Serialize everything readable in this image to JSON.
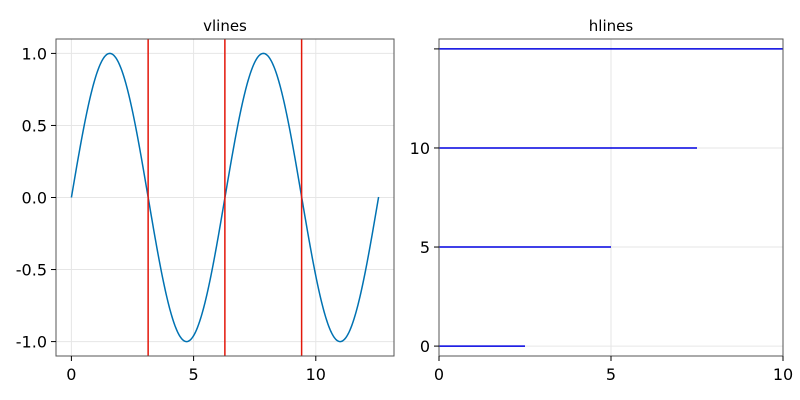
{
  "colors": {
    "sine": "#0072B2",
    "vlines": "#E3170A",
    "hlines": "#0000E0",
    "grid": "#E6E6E6",
    "frame": "#555555"
  },
  "chart_data": [
    {
      "type": "line",
      "title": "vlines",
      "xlabel": "",
      "ylabel": "",
      "xlim": [
        -0.63,
        13.2
      ],
      "ylim": [
        -1.1,
        1.1
      ],
      "grid": true,
      "x_ticks": [
        0,
        5,
        10
      ],
      "x_tick_labels": [
        "0",
        "5",
        "10"
      ],
      "y_ticks": [
        1.0,
        0.5,
        0.0,
        -0.5,
        -1.0
      ],
      "y_tick_labels": [
        "1.0",
        "0.5",
        "0.0",
        "-0.5",
        "-1.0"
      ],
      "series": [
        {
          "function": "sin(x)",
          "x_range": [
            0,
            12.57
          ]
        }
      ],
      "vlines": [
        3.14,
        6.28,
        9.42
      ]
    },
    {
      "type": "line",
      "title": "hlines",
      "xlabel": "",
      "ylabel": "",
      "xlim": [
        0,
        10
      ],
      "ylim": [
        -0.5,
        15.5
      ],
      "grid": true,
      "x_ticks": [
        0,
        5,
        10
      ],
      "x_tick_labels": [
        "0",
        "5",
        "10"
      ],
      "y_ticks": [
        0,
        5,
        10,
        15
      ],
      "y_tick_labels": [
        "0",
        "5",
        "10",
        ""
      ],
      "hlines": [
        {
          "y": 0,
          "xmax": 2.5
        },
        {
          "y": 5,
          "xmax": 5
        },
        {
          "y": 10,
          "xmax": 7.5
        },
        {
          "y": 15,
          "xmax": 10
        }
      ]
    }
  ]
}
